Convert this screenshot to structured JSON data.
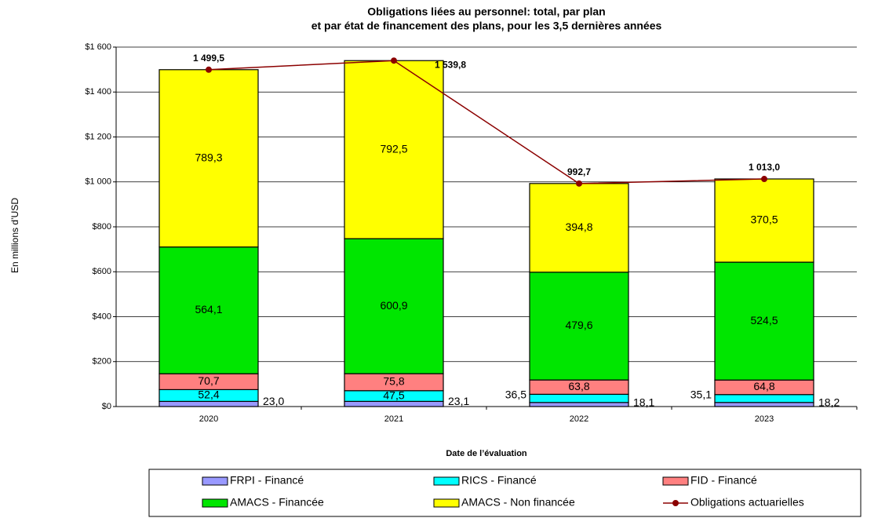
{
  "chart_data": {
    "type": "stacked-bar-line",
    "title": [
      "Obligations liées au personnel: total, par plan",
      "et par état de financement des plans, pour les 3,5 dernières années"
    ],
    "x_label": "Date de l’évaluation",
    "y_label": "En millions d’USD",
    "categories": [
      "2020",
      "2021",
      "2022",
      "2023"
    ],
    "ylim": [
      0,
      1600
    ],
    "yticks": [
      {
        "value": 0,
        "label": "$0"
      },
      {
        "value": 200,
        "label": "$200"
      },
      {
        "value": 400,
        "label": "$400"
      },
      {
        "value": 600,
        "label": "$600"
      },
      {
        "value": 800,
        "label": "$800"
      },
      {
        "value": 1000,
        "label": "$1 000"
      },
      {
        "value": 1200,
        "label": "$1 200"
      },
      {
        "value": 1400,
        "label": "$1 400"
      },
      {
        "value": 1600,
        "label": "$1 600"
      }
    ],
    "grid": true,
    "series": [
      {
        "name": "FRPI - Financé",
        "color": "#9999ff",
        "values": [
          23.0,
          23.1,
          18.1,
          18.2
        ],
        "value_labels": [
          "23,0",
          "23,1",
          "18,1",
          "18,2"
        ]
      },
      {
        "name": "RICS - Financé",
        "color": "#00ffff",
        "values": [
          52.4,
          47.5,
          36.5,
          35.1
        ],
        "value_labels": [
          "52,4",
          "47,5",
          "36,5",
          "35,1"
        ]
      },
      {
        "name": "FID - Financé",
        "color": "#ff8080",
        "values": [
          70.7,
          75.8,
          63.8,
          64.8
        ],
        "value_labels": [
          "70,7",
          "75,8",
          "63,8",
          "64,8"
        ]
      },
      {
        "name": "AMACS - Financée",
        "color": "#00e600",
        "values": [
          564.1,
          600.9,
          479.6,
          524.5
        ],
        "value_labels": [
          "564,1",
          "600,9",
          "479,6",
          "524,5"
        ]
      },
      {
        "name": "AMACS - Non financée",
        "color": "#ffff00",
        "values": [
          789.3,
          792.5,
          394.8,
          370.5
        ],
        "value_labels": [
          "789,3",
          "792,5",
          "394,8",
          "370,5"
        ]
      },
      {
        "name": "Obligations actuarielles",
        "type": "line",
        "color": "#8b0000",
        "values": [
          1499.5,
          1539.8,
          992.7,
          1013.0
        ],
        "value_labels": [
          "1 499,5",
          "1 539,8",
          "992,7",
          "1 013,0"
        ]
      }
    ]
  }
}
